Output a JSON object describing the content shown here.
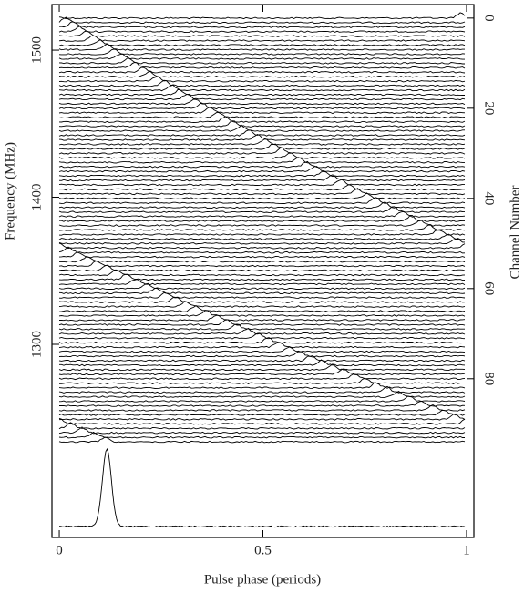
{
  "chart_data": {
    "type": "pulse-stack",
    "xlabel": "Pulse phase (periods)",
    "ylabel": "Frequency (MHz)",
    "y2label": "Channel Number",
    "xlim": [
      -0.018,
      1.018
    ],
    "xticks": [
      0,
      0.5,
      1
    ],
    "ylim": [
      1168.7,
      1531
    ],
    "yticks": [
      1300,
      1400,
      1500
    ],
    "y2lim": [
      115.2,
      -3
    ],
    "y2ticks": [
      0,
      20,
      40,
      60,
      80
    ],
    "color": "#000000",
    "pulse_phase": [
      0.985,
      0.016,
      0.033,
      0.049,
      0.066,
      0.083,
      0.1,
      0.117,
      0.134,
      0.151,
      0.169,
      0.186,
      0.204,
      0.222,
      0.24,
      0.258,
      0.276,
      0.295,
      0.313,
      0.332,
      0.351,
      0.37,
      0.389,
      0.408,
      0.427,
      0.447,
      0.466,
      0.486,
      0.506,
      0.526,
      0.546,
      0.566,
      0.587,
      0.607,
      0.628,
      0.649,
      0.67,
      0.691,
      0.712,
      0.733,
      0.755,
      0.776,
      0.798,
      0.82,
      0.842,
      0.864,
      0.887,
      0.909,
      0.932,
      0.954,
      0.977,
      0,
      0.023,
      0.046,
      0.07,
      0.093,
      0.117,
      0.141,
      0.164,
      0.188,
      0.213,
      0.237,
      0.261,
      0.286,
      0.311,
      0.335,
      0.36,
      0.386,
      0.411,
      0.436,
      0.462,
      0.487,
      0.513,
      0.539,
      0.565,
      0.591,
      0.617,
      0.644,
      0.67,
      0.697,
      0.724,
      0.751,
      0.778,
      0.805,
      0.833,
      0.86,
      0.888,
      0.916,
      0.944,
      0.972,
      0,
      0.028,
      0.057,
      0.085,
      0.114
    ],
    "profile_peak_phase": 0.117,
    "profile_sigma": 0.011
  }
}
